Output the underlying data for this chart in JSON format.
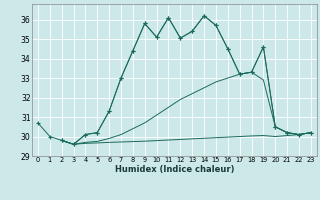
{
  "xlabel": "Humidex (Indice chaleur)",
  "xlim": [
    -0.5,
    23.5
  ],
  "ylim": [
    29.0,
    36.8
  ],
  "yticks": [
    29,
    30,
    31,
    32,
    33,
    34,
    35,
    36
  ],
  "xticks": [
    0,
    1,
    2,
    3,
    4,
    5,
    6,
    7,
    8,
    9,
    10,
    11,
    12,
    13,
    14,
    15,
    16,
    17,
    18,
    19,
    20,
    21,
    22,
    23
  ],
  "bg_color": "#cde8e8",
  "line_color": "#1a6b5a",
  "grid_color": "#ffffff",
  "line_A_x": [
    0,
    1,
    2,
    3,
    4,
    5,
    6,
    7,
    8,
    9,
    10,
    11,
    12,
    13,
    14,
    15,
    16,
    17,
    18,
    19,
    20,
    21,
    22,
    23
  ],
  "line_A_y": [
    30.7,
    30.0,
    29.8,
    29.6,
    30.1,
    30.2,
    31.3,
    33.0,
    34.4,
    35.8,
    35.1,
    36.1,
    35.05,
    35.4,
    36.2,
    35.7,
    34.5,
    33.2,
    33.3,
    34.6,
    30.5,
    30.2,
    30.1,
    30.2
  ],
  "line_B_x": [
    2,
    3,
    4,
    5,
    6,
    7,
    8,
    9,
    10,
    11,
    12,
    13,
    14,
    15,
    16,
    17,
    18,
    19,
    20,
    21,
    22,
    23
  ],
  "line_B_y": [
    29.8,
    29.6,
    30.1,
    30.2,
    31.3,
    33.0,
    34.4,
    35.8,
    35.1,
    36.1,
    35.05,
    35.4,
    36.2,
    35.7,
    34.5,
    33.2,
    33.3,
    34.6,
    30.5,
    30.2,
    30.1,
    30.2
  ],
  "line_C_x": [
    2,
    3,
    4,
    5,
    6,
    7,
    8,
    9,
    10,
    11,
    12,
    13,
    14,
    15,
    16,
    17,
    18,
    19,
    20,
    21,
    22,
    23
  ],
  "line_C_y": [
    29.8,
    29.6,
    29.7,
    29.75,
    29.9,
    30.1,
    30.4,
    30.7,
    31.1,
    31.5,
    31.9,
    32.2,
    32.5,
    32.8,
    33.0,
    33.2,
    33.3,
    32.9,
    30.5,
    30.2,
    30.1,
    30.2
  ],
  "line_D_x": [
    2,
    3,
    4,
    5,
    6,
    7,
    8,
    9,
    10,
    11,
    12,
    13,
    14,
    15,
    16,
    17,
    18,
    19,
    20,
    21,
    22,
    23
  ],
  "line_D_y": [
    29.8,
    29.6,
    29.65,
    29.67,
    29.7,
    29.72,
    29.74,
    29.76,
    29.79,
    29.82,
    29.85,
    29.88,
    29.91,
    29.94,
    29.97,
    30.0,
    30.03,
    30.05,
    30.0,
    30.05,
    30.1,
    30.2
  ]
}
